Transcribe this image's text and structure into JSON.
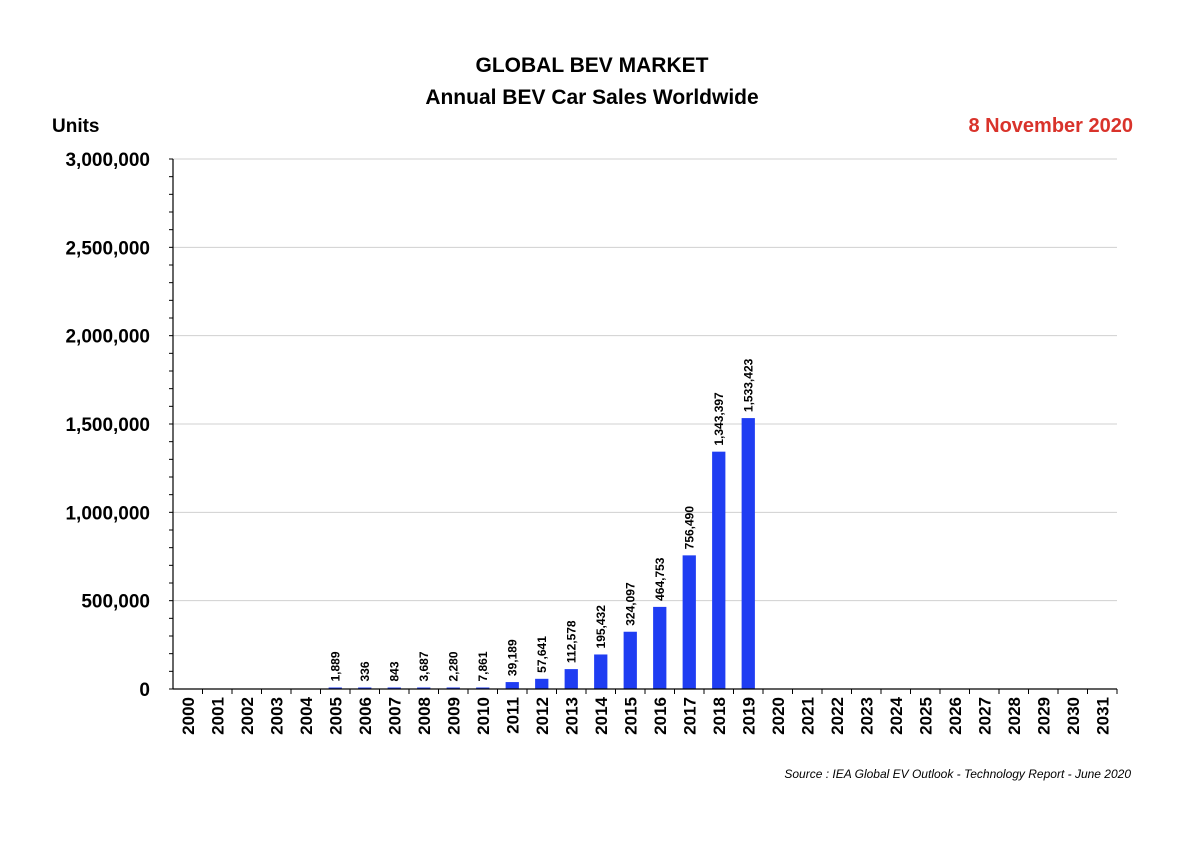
{
  "chart_data": {
    "type": "bar",
    "title": "GLOBAL BEV MARKET",
    "subtitle": "Annual BEV Car Sales Worldwide",
    "ylabel": "Units",
    "date_label": "8 November 2020",
    "source": "Source : IEA Global EV Outlook - Technology Report - June 2020",
    "categories": [
      "2000",
      "2001",
      "2002",
      "2003",
      "2004",
      "2005",
      "2006",
      "2007",
      "2008",
      "2009",
      "2010",
      "2011",
      "2012",
      "2013",
      "2014",
      "2015",
      "2016",
      "2017",
      "2018",
      "2019",
      "2020",
      "2021",
      "2022",
      "2023",
      "2024",
      "2025",
      "2026",
      "2027",
      "2028",
      "2029",
      "2030",
      "2031"
    ],
    "values": [
      null,
      null,
      null,
      null,
      null,
      1889,
      336,
      843,
      3687,
      2280,
      7861,
      39189,
      57641,
      112578,
      195432,
      324097,
      464753,
      756490,
      1343397,
      1533423,
      null,
      null,
      null,
      null,
      null,
      null,
      null,
      null,
      null,
      null,
      null,
      null
    ],
    "data_labels": [
      "",
      "",
      "",
      "",
      "",
      "1,889",
      "336",
      "843",
      "3,687",
      "2,280",
      "7,861",
      "39,189",
      "57,641",
      "112,578",
      "195,432",
      "324,097",
      "464,753",
      "756,490",
      "1,343,397",
      "1,533,423",
      "",
      "",
      "",
      "",
      "",
      "",
      "",
      "",
      "",
      "",
      "",
      ""
    ],
    "yticks": [
      0,
      500000,
      1000000,
      1500000,
      2000000,
      2500000,
      3000000
    ],
    "ytick_labels": [
      "0",
      "500,000",
      "1,000,000",
      "1,500,000",
      "2,000,000",
      "2,500,000",
      "3,000,000"
    ],
    "ylim": [
      0,
      3000000
    ],
    "grid": "horizontal",
    "bar_color": "#1f3df2",
    "date_color": "#d9332b",
    "grid_color": "#d0d0d0"
  }
}
